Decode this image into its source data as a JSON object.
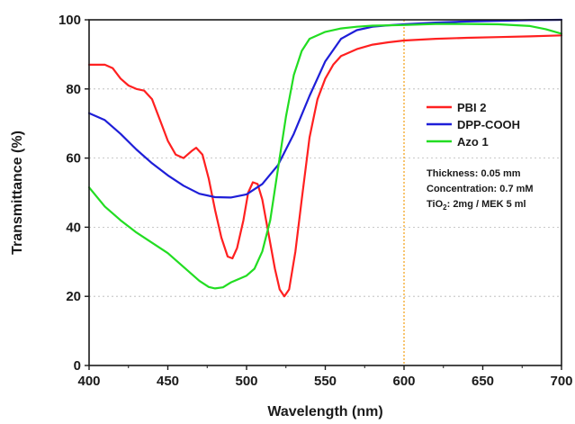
{
  "chart_data": {
    "type": "line",
    "title": "",
    "xlabel": "Wavelength (nm)",
    "ylabel": "Transmittance (%)",
    "xlim": [
      400,
      700
    ],
    "ylim": [
      0,
      100
    ],
    "xticks": [
      400,
      450,
      500,
      550,
      600,
      650,
      700
    ],
    "yticks": [
      0,
      20,
      40,
      60,
      80,
      100
    ],
    "grid": true,
    "legend_position": "right",
    "reference_line": {
      "x": 600,
      "color": "#f5a623"
    },
    "series": [
      {
        "name": "PBI 2",
        "color": "#ff2020",
        "points": [
          [
            400,
            87
          ],
          [
            410,
            87
          ],
          [
            415,
            86
          ],
          [
            420,
            83
          ],
          [
            425,
            81
          ],
          [
            430,
            80
          ],
          [
            435,
            79.5
          ],
          [
            440,
            77
          ],
          [
            445,
            71
          ],
          [
            450,
            65
          ],
          [
            455,
            61
          ],
          [
            460,
            60
          ],
          [
            465,
            62
          ],
          [
            468,
            63
          ],
          [
            472,
            61
          ],
          [
            476,
            54
          ],
          [
            480,
            45
          ],
          [
            484,
            37
          ],
          [
            488,
            31.5
          ],
          [
            491,
            31
          ],
          [
            494,
            34
          ],
          [
            498,
            42
          ],
          [
            501,
            50
          ],
          [
            504,
            53
          ],
          [
            507,
            52.5
          ],
          [
            510,
            48
          ],
          [
            514,
            38
          ],
          [
            518,
            28
          ],
          [
            521,
            22
          ],
          [
            524,
            20
          ],
          [
            527,
            22
          ],
          [
            531,
            33
          ],
          [
            535,
            48
          ],
          [
            540,
            66
          ],
          [
            545,
            77
          ],
          [
            550,
            83
          ],
          [
            555,
            87
          ],
          [
            560,
            89.5
          ],
          [
            570,
            91.5
          ],
          [
            580,
            92.8
          ],
          [
            590,
            93.5
          ],
          [
            600,
            94
          ],
          [
            620,
            94.5
          ],
          [
            640,
            94.8
          ],
          [
            660,
            95
          ],
          [
            680,
            95.2
          ],
          [
            700,
            95.5
          ]
        ]
      },
      {
        "name": "DPP-COOH",
        "color": "#1e1ed8",
        "points": [
          [
            400,
            73
          ],
          [
            410,
            71
          ],
          [
            420,
            67
          ],
          [
            430,
            62.5
          ],
          [
            440,
            58.5
          ],
          [
            450,
            55
          ],
          [
            460,
            52
          ],
          [
            470,
            49.7
          ],
          [
            480,
            48.7
          ],
          [
            490,
            48.6
          ],
          [
            500,
            49.5
          ],
          [
            510,
            52.5
          ],
          [
            520,
            58
          ],
          [
            530,
            67
          ],
          [
            540,
            78
          ],
          [
            550,
            88
          ],
          [
            560,
            94.5
          ],
          [
            570,
            97
          ],
          [
            580,
            98
          ],
          [
            590,
            98.4
          ],
          [
            600,
            98.7
          ],
          [
            620,
            99.2
          ],
          [
            640,
            99.5
          ],
          [
            660,
            99.7
          ],
          [
            680,
            99.9
          ],
          [
            700,
            100
          ]
        ]
      },
      {
        "name": "Azo 1",
        "color": "#22dd22",
        "points": [
          [
            400,
            51.5
          ],
          [
            410,
            46
          ],
          [
            420,
            42
          ],
          [
            430,
            38.5
          ],
          [
            440,
            35.5
          ],
          [
            450,
            32.5
          ],
          [
            460,
            28.5
          ],
          [
            470,
            24.5
          ],
          [
            476,
            22.7
          ],
          [
            480,
            22.3
          ],
          [
            485,
            22.6
          ],
          [
            490,
            24
          ],
          [
            495,
            25
          ],
          [
            500,
            26
          ],
          [
            505,
            28
          ],
          [
            510,
            33
          ],
          [
            515,
            42
          ],
          [
            520,
            57
          ],
          [
            525,
            72
          ],
          [
            530,
            84
          ],
          [
            535,
            91
          ],
          [
            540,
            94.5
          ],
          [
            550,
            96.5
          ],
          [
            560,
            97.5
          ],
          [
            570,
            98
          ],
          [
            580,
            98.3
          ],
          [
            600,
            98.5
          ],
          [
            620,
            98.8
          ],
          [
            640,
            98.8
          ],
          [
            660,
            98.7
          ],
          [
            680,
            98.2
          ],
          [
            690,
            97.3
          ],
          [
            700,
            96
          ]
        ]
      }
    ],
    "legend": [
      "PBI 2",
      "DPP-COOH",
      "Azo 1"
    ],
    "annotations": [
      {
        "text": "Thickness: 0.05 mm"
      },
      {
        "text": "Concentration: 0.7 mM"
      },
      {
        "text": "TiO",
        "sub": "2",
        "rest": ": 2mg / MEK 5 ml"
      }
    ]
  }
}
